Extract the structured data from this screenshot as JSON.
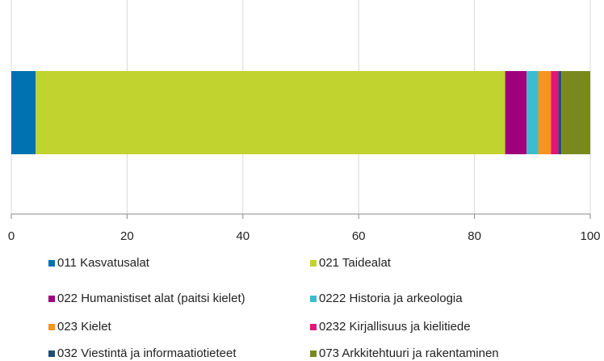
{
  "chart_data": {
    "type": "stacked-bar-horizontal",
    "categories": [
      null
    ],
    "series": [
      {
        "name": "011 Kasvatusalat",
        "color": "#0072b1",
        "values": [
          4.2
        ]
      },
      {
        "name": "021 Taidealat",
        "color": "#c0d32e",
        "values": [
          81.1
        ]
      },
      {
        "name": "022 Humanistiset alat (paitsi kielet)",
        "color": "#a0007c",
        "values": [
          3.7
        ]
      },
      {
        "name": "0222 Historia ja arkeologia",
        "color": "#3cbccf",
        "values": [
          2
        ]
      },
      {
        "name": "023 Kielet",
        "color": "#f7941e",
        "values": [
          2.2
        ]
      },
      {
        "name": "0232 Kirjallisuus ja kielitiede",
        "color": "#e0167b",
        "values": [
          1.3
        ]
      },
      {
        "name": "032 Viestintä ja informaatiotieteet",
        "color": "#1f4e79",
        "values": [
          0.5
        ]
      },
      {
        "name": "073 Arkkitehtuuri ja rakentaminen",
        "color": "#7a891e",
        "values": [
          5
        ]
      }
    ],
    "xlim": [
      0,
      100
    ],
    "xticks": [
      0,
      20,
      40,
      60,
      80,
      100
    ],
    "grid": true
  }
}
